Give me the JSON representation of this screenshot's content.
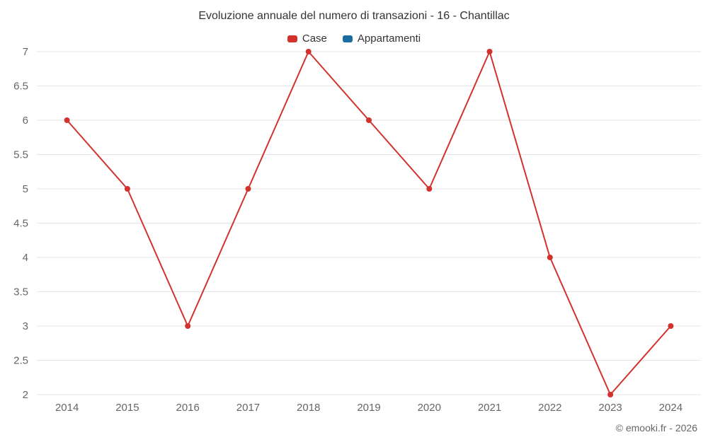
{
  "chart": {
    "credits": "© emooki.fr - 2026"
  },
  "chart_data": {
    "type": "line",
    "title": "Evoluzione annuale del numero di transazioni - 16 - Chantillac",
    "categories": [
      "2014",
      "2015",
      "2016",
      "2017",
      "2018",
      "2019",
      "2020",
      "2021",
      "2022",
      "2023",
      "2024"
    ],
    "series": [
      {
        "name": "Case",
        "color": "#d2322e",
        "values": [
          6,
          5,
          3,
          5,
          7,
          6,
          5,
          7,
          4,
          2,
          3
        ]
      },
      {
        "name": "Appartamenti",
        "color": "#1a6da1",
        "values": []
      }
    ],
    "xlabel": "",
    "ylabel": "",
    "ylim": [
      2,
      7
    ],
    "ytick_step": 0.5,
    "grid": "horizontal",
    "legend_position": "top",
    "grid_color": "#e6e6e6",
    "axis_label_color": "#666666"
  }
}
